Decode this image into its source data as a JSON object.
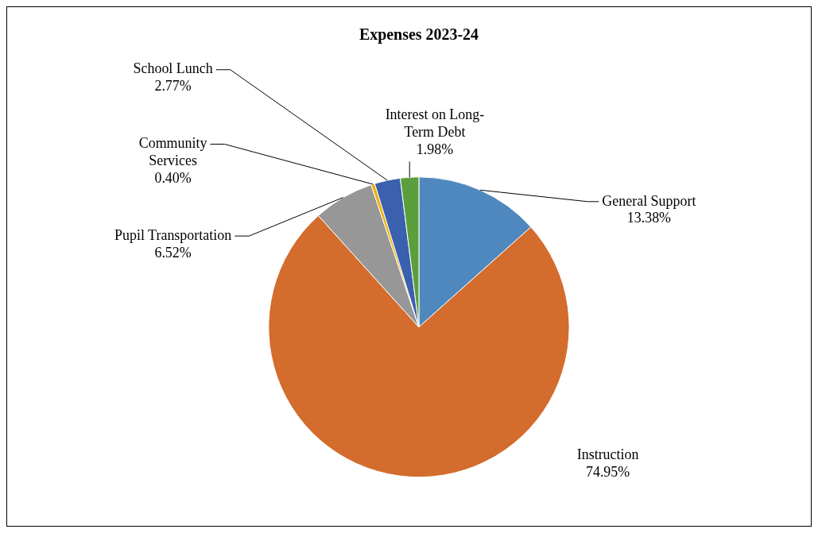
{
  "chart_data": {
    "type": "pie",
    "title": "Expenses 2023-24",
    "categories": [
      "General Support",
      "Instruction",
      "Pupil Transportation",
      "Community Services",
      "School Lunch",
      "Interest on Long-Term Debt"
    ],
    "values": [
      13.38,
      74.95,
      6.52,
      0.4,
      2.77,
      1.98
    ],
    "value_labels": [
      "13.38%",
      "74.95%",
      "6.52%",
      "0.40%",
      "2.77%",
      "1.98%"
    ],
    "colors": [
      "#4f88be",
      "#d36c2c",
      "#979797",
      "#eeb000",
      "#3a60ae",
      "#5d9e3c"
    ],
    "legend": false
  }
}
